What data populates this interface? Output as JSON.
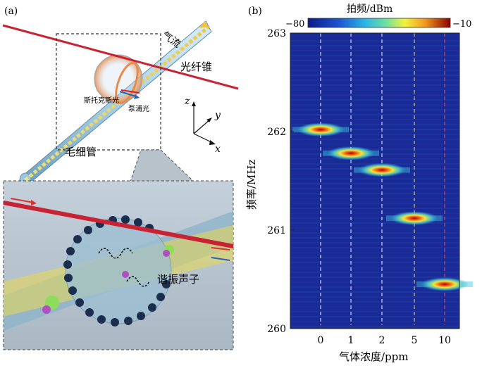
{
  "panel_a": {
    "label": "(a)",
    "labels": {
      "gas_flow": "气流",
      "fiber_taper": "光纤锥",
      "stokes": "斯托克斯光",
      "pump": "泵浦光",
      "capillary": "毛细管",
      "resonant_phonon": "谐振声子"
    },
    "axes": {
      "z": "z",
      "y": "y",
      "x": "x"
    }
  },
  "panel_b": {
    "label": "(b)",
    "colorbar": {
      "title": "拍频/dBm",
      "min_label": "−80",
      "max_label": "−10"
    }
  },
  "chart_data": {
    "type": "heatmap",
    "xlabel": "气体浓度/ppm",
    "ylabel": "频率/MHz",
    "ylim": [
      260,
      263
    ],
    "yticks": [
      "263",
      "262",
      "261",
      "260"
    ],
    "categories": [
      "0",
      "1",
      "2",
      "5",
      "10"
    ],
    "peaks": [
      {
        "concentration": "0",
        "frequency": 262.02
      },
      {
        "concentration": "1",
        "frequency": 261.78
      },
      {
        "concentration": "2",
        "frequency": 261.61
      },
      {
        "concentration": "5",
        "frequency": 261.12
      },
      {
        "concentration": "10",
        "frequency": 260.45
      }
    ],
    "grid": true,
    "colors": {
      "low": "#17208f",
      "mid": "#2aa8e0",
      "high": "#8b0000"
    }
  }
}
